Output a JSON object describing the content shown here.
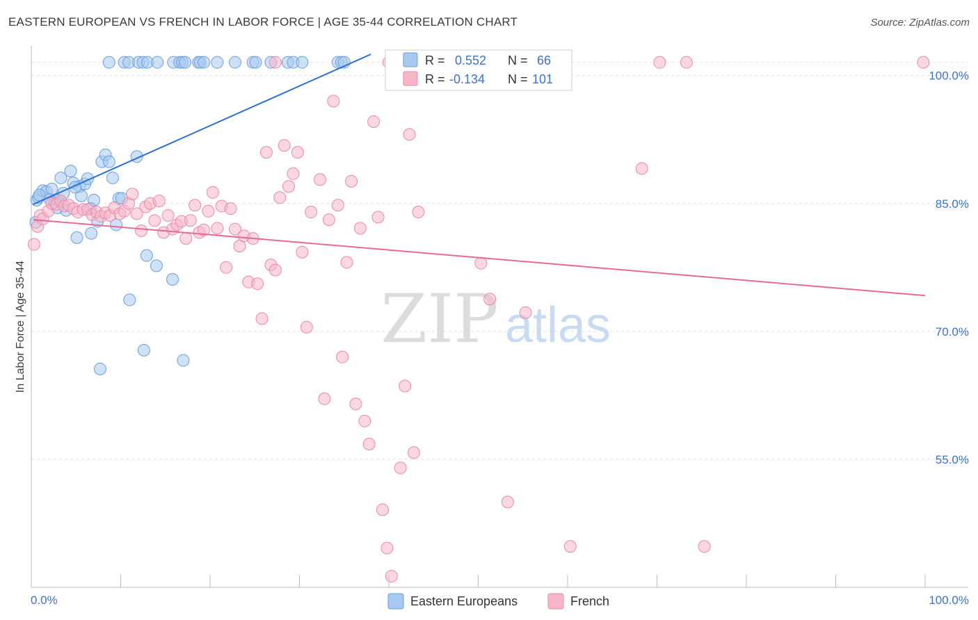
{
  "header": {
    "title": "EASTERN EUROPEAN VS FRENCH IN LABOR FORCE | AGE 35-44 CORRELATION CHART",
    "source": "Source: ZipAtlas.com"
  },
  "watermark": {
    "zip": "ZIP",
    "atlas": "atlas"
  },
  "legend_box": {
    "rows": [
      {
        "r_label": "R =",
        "r_value": "0.552",
        "n_label": "N =",
        "n_value": "66",
        "color": "#a8c8f0"
      },
      {
        "r_label": "R =",
        "r_value": "-0.134",
        "n_label": "N =",
        "n_value": "101",
        "color": "#f7b6c8"
      }
    ]
  },
  "chart_data": {
    "type": "scatter",
    "title": "EASTERN EUROPEAN VS FRENCH IN LABOR FORCE | AGE 35-44 CORRELATION CHART",
    "xlabel": "",
    "ylabel": "In Labor Force | Age 35-44",
    "xlim": [
      0,
      100
    ],
    "ylim": [
      40,
      102.5
    ],
    "x_tick_labels": [
      "0.0%",
      "100.0%"
    ],
    "y_ticks": [
      55,
      70,
      85,
      100
    ],
    "y_tick_labels": [
      "55.0%",
      "70.0%",
      "85.0%",
      "100.0%"
    ],
    "grid": true,
    "legend_placement": "bottom-center",
    "series": [
      {
        "name": "Eastern Europeans",
        "color": "#a8c8f0",
        "stroke": "#6a9fdc",
        "line_color": "#2c6fd1",
        "trend": {
          "x": [
            0.2,
            38
          ],
          "y": [
            84.9,
            100.1
          ]
        },
        "points": [
          [
            0.5,
            82.8
          ],
          [
            0.6,
            85.4
          ],
          [
            0.8,
            85.7
          ],
          [
            1.3,
            86.5
          ],
          [
            1.7,
            86.4
          ],
          [
            2.1,
            85.5
          ],
          [
            2.3,
            86.7
          ],
          [
            2.6,
            85.1
          ],
          [
            3.0,
            85.4
          ],
          [
            3.3,
            88.0
          ],
          [
            3.6,
            86.2
          ],
          [
            3.9,
            84.2
          ],
          [
            4.4,
            88.8
          ],
          [
            4.7,
            87.4
          ],
          [
            5.1,
            81.0
          ],
          [
            5.4,
            87.0
          ],
          [
            5.6,
            85.9
          ],
          [
            6.0,
            87.3
          ],
          [
            6.3,
            87.9
          ],
          [
            6.7,
            81.5
          ],
          [
            7.0,
            85.4
          ],
          [
            7.4,
            82.9
          ],
          [
            7.7,
            65.6
          ],
          [
            7.9,
            89.9
          ],
          [
            8.3,
            90.7
          ],
          [
            8.7,
            89.9
          ],
          [
            9.1,
            88.0
          ],
          [
            9.5,
            82.5
          ],
          [
            9.8,
            85.6
          ],
          [
            10.1,
            85.6
          ],
          [
            11.0,
            73.7
          ],
          [
            11.8,
            90.5
          ],
          [
            12.6,
            67.8
          ],
          [
            12.9,
            78.9
          ],
          [
            14.0,
            77.7
          ],
          [
            15.8,
            76.1
          ],
          [
            17.0,
            66.6
          ],
          [
            8.7,
            100
          ],
          [
            10.4,
            100
          ],
          [
            10.9,
            100
          ],
          [
            12.0,
            100
          ],
          [
            12.5,
            100
          ],
          [
            13.0,
            100
          ],
          [
            14.1,
            100
          ],
          [
            15.9,
            100
          ],
          [
            16.6,
            100
          ],
          [
            16.9,
            100
          ],
          [
            17.2,
            100
          ],
          [
            18.7,
            100
          ],
          [
            18.9,
            100
          ],
          [
            19.3,
            100
          ],
          [
            20.8,
            100
          ],
          [
            22.8,
            100
          ],
          [
            24.8,
            100
          ],
          [
            25.1,
            100
          ],
          [
            26.8,
            100
          ],
          [
            28.7,
            100
          ],
          [
            29.3,
            100
          ],
          [
            30.3,
            100
          ],
          [
            34.3,
            100
          ],
          [
            34.7,
            100
          ],
          [
            35.0,
            100
          ],
          [
            0.9,
            86.0
          ],
          [
            2.9,
            84.5
          ],
          [
            4.9,
            86.9
          ],
          [
            6.6,
            84.4
          ]
        ]
      },
      {
        "name": "French",
        "color": "#f7b6c8",
        "stroke": "#e98aa8",
        "line_color": "#e36b94",
        "trend": {
          "x": [
            0.2,
            100
          ],
          "y": [
            83.1,
            74.2
          ]
        },
        "points": [
          [
            0.3,
            80.2
          ],
          [
            0.7,
            82.3
          ],
          [
            1.0,
            83.6
          ],
          [
            1.3,
            83.2
          ],
          [
            1.9,
            84.1
          ],
          [
            2.3,
            85.0
          ],
          [
            2.8,
            84.9
          ],
          [
            3.3,
            85.3
          ],
          [
            3.7,
            84.7
          ],
          [
            4.2,
            84.8
          ],
          [
            4.7,
            84.4
          ],
          [
            5.2,
            84.0
          ],
          [
            5.8,
            84.3
          ],
          [
            6.3,
            84.3
          ],
          [
            6.8,
            83.7
          ],
          [
            7.3,
            84.0
          ],
          [
            7.8,
            83.5
          ],
          [
            8.3,
            83.9
          ],
          [
            8.8,
            83.6
          ],
          [
            9.3,
            84.5
          ],
          [
            9.9,
            83.8
          ],
          [
            10.4,
            84.1
          ],
          [
            10.9,
            85.0
          ],
          [
            11.3,
            86.1
          ],
          [
            11.8,
            83.8
          ],
          [
            12.3,
            81.8
          ],
          [
            12.8,
            84.6
          ],
          [
            13.3,
            85.0
          ],
          [
            13.8,
            83.0
          ],
          [
            14.3,
            85.3
          ],
          [
            14.8,
            81.6
          ],
          [
            15.3,
            83.6
          ],
          [
            15.8,
            82.0
          ],
          [
            16.3,
            82.5
          ],
          [
            16.8,
            82.9
          ],
          [
            17.3,
            80.9
          ],
          [
            17.8,
            83.0
          ],
          [
            18.3,
            84.8
          ],
          [
            18.8,
            81.6
          ],
          [
            19.3,
            81.9
          ],
          [
            19.8,
            84.1
          ],
          [
            20.3,
            86.3
          ],
          [
            20.8,
            82.1
          ],
          [
            21.3,
            84.7
          ],
          [
            21.8,
            77.5
          ],
          [
            22.3,
            84.4
          ],
          [
            22.8,
            82.0
          ],
          [
            23.3,
            80.0
          ],
          [
            23.8,
            81.2
          ],
          [
            24.3,
            75.8
          ],
          [
            24.8,
            80.9
          ],
          [
            25.3,
            75.6
          ],
          [
            25.8,
            71.5
          ],
          [
            26.3,
            91.0
          ],
          [
            26.8,
            77.8
          ],
          [
            27.3,
            77.2
          ],
          [
            27.8,
            85.7
          ],
          [
            28.3,
            91.8
          ],
          [
            28.8,
            87.0
          ],
          [
            29.3,
            88.5
          ],
          [
            29.8,
            91.0
          ],
          [
            30.3,
            79.3
          ],
          [
            30.8,
            70.5
          ],
          [
            31.3,
            84.0
          ],
          [
            32.3,
            87.8
          ],
          [
            32.8,
            62.1
          ],
          [
            33.3,
            83.1
          ],
          [
            33.8,
            97.0
          ],
          [
            34.3,
            84.8
          ],
          [
            34.8,
            67.0
          ],
          [
            35.3,
            78.1
          ],
          [
            35.8,
            87.6
          ],
          [
            36.3,
            61.5
          ],
          [
            36.8,
            82.1
          ],
          [
            37.3,
            59.5
          ],
          [
            37.8,
            56.8
          ],
          [
            38.3,
            94.6
          ],
          [
            38.8,
            83.4
          ],
          [
            39.3,
            49.1
          ],
          [
            39.8,
            44.6
          ],
          [
            40.3,
            41.3
          ],
          [
            40.8,
            100
          ],
          [
            41.3,
            54.0
          ],
          [
            41.8,
            63.6
          ],
          [
            42.3,
            93.1
          ],
          [
            42.8,
            55.8
          ],
          [
            43.3,
            84.0
          ],
          [
            45.3,
            100
          ],
          [
            50.3,
            78.0
          ],
          [
            51.3,
            73.8
          ],
          [
            53.3,
            50.0
          ],
          [
            55.3,
            72.2
          ],
          [
            57.3,
            100
          ],
          [
            60.3,
            44.8
          ],
          [
            68.3,
            89.1
          ],
          [
            70.3,
            100
          ],
          [
            73.3,
            100
          ],
          [
            75.3,
            44.8
          ],
          [
            99.8,
            100
          ],
          [
            40.0,
            100
          ],
          [
            27.3,
            100
          ]
        ]
      }
    ]
  }
}
